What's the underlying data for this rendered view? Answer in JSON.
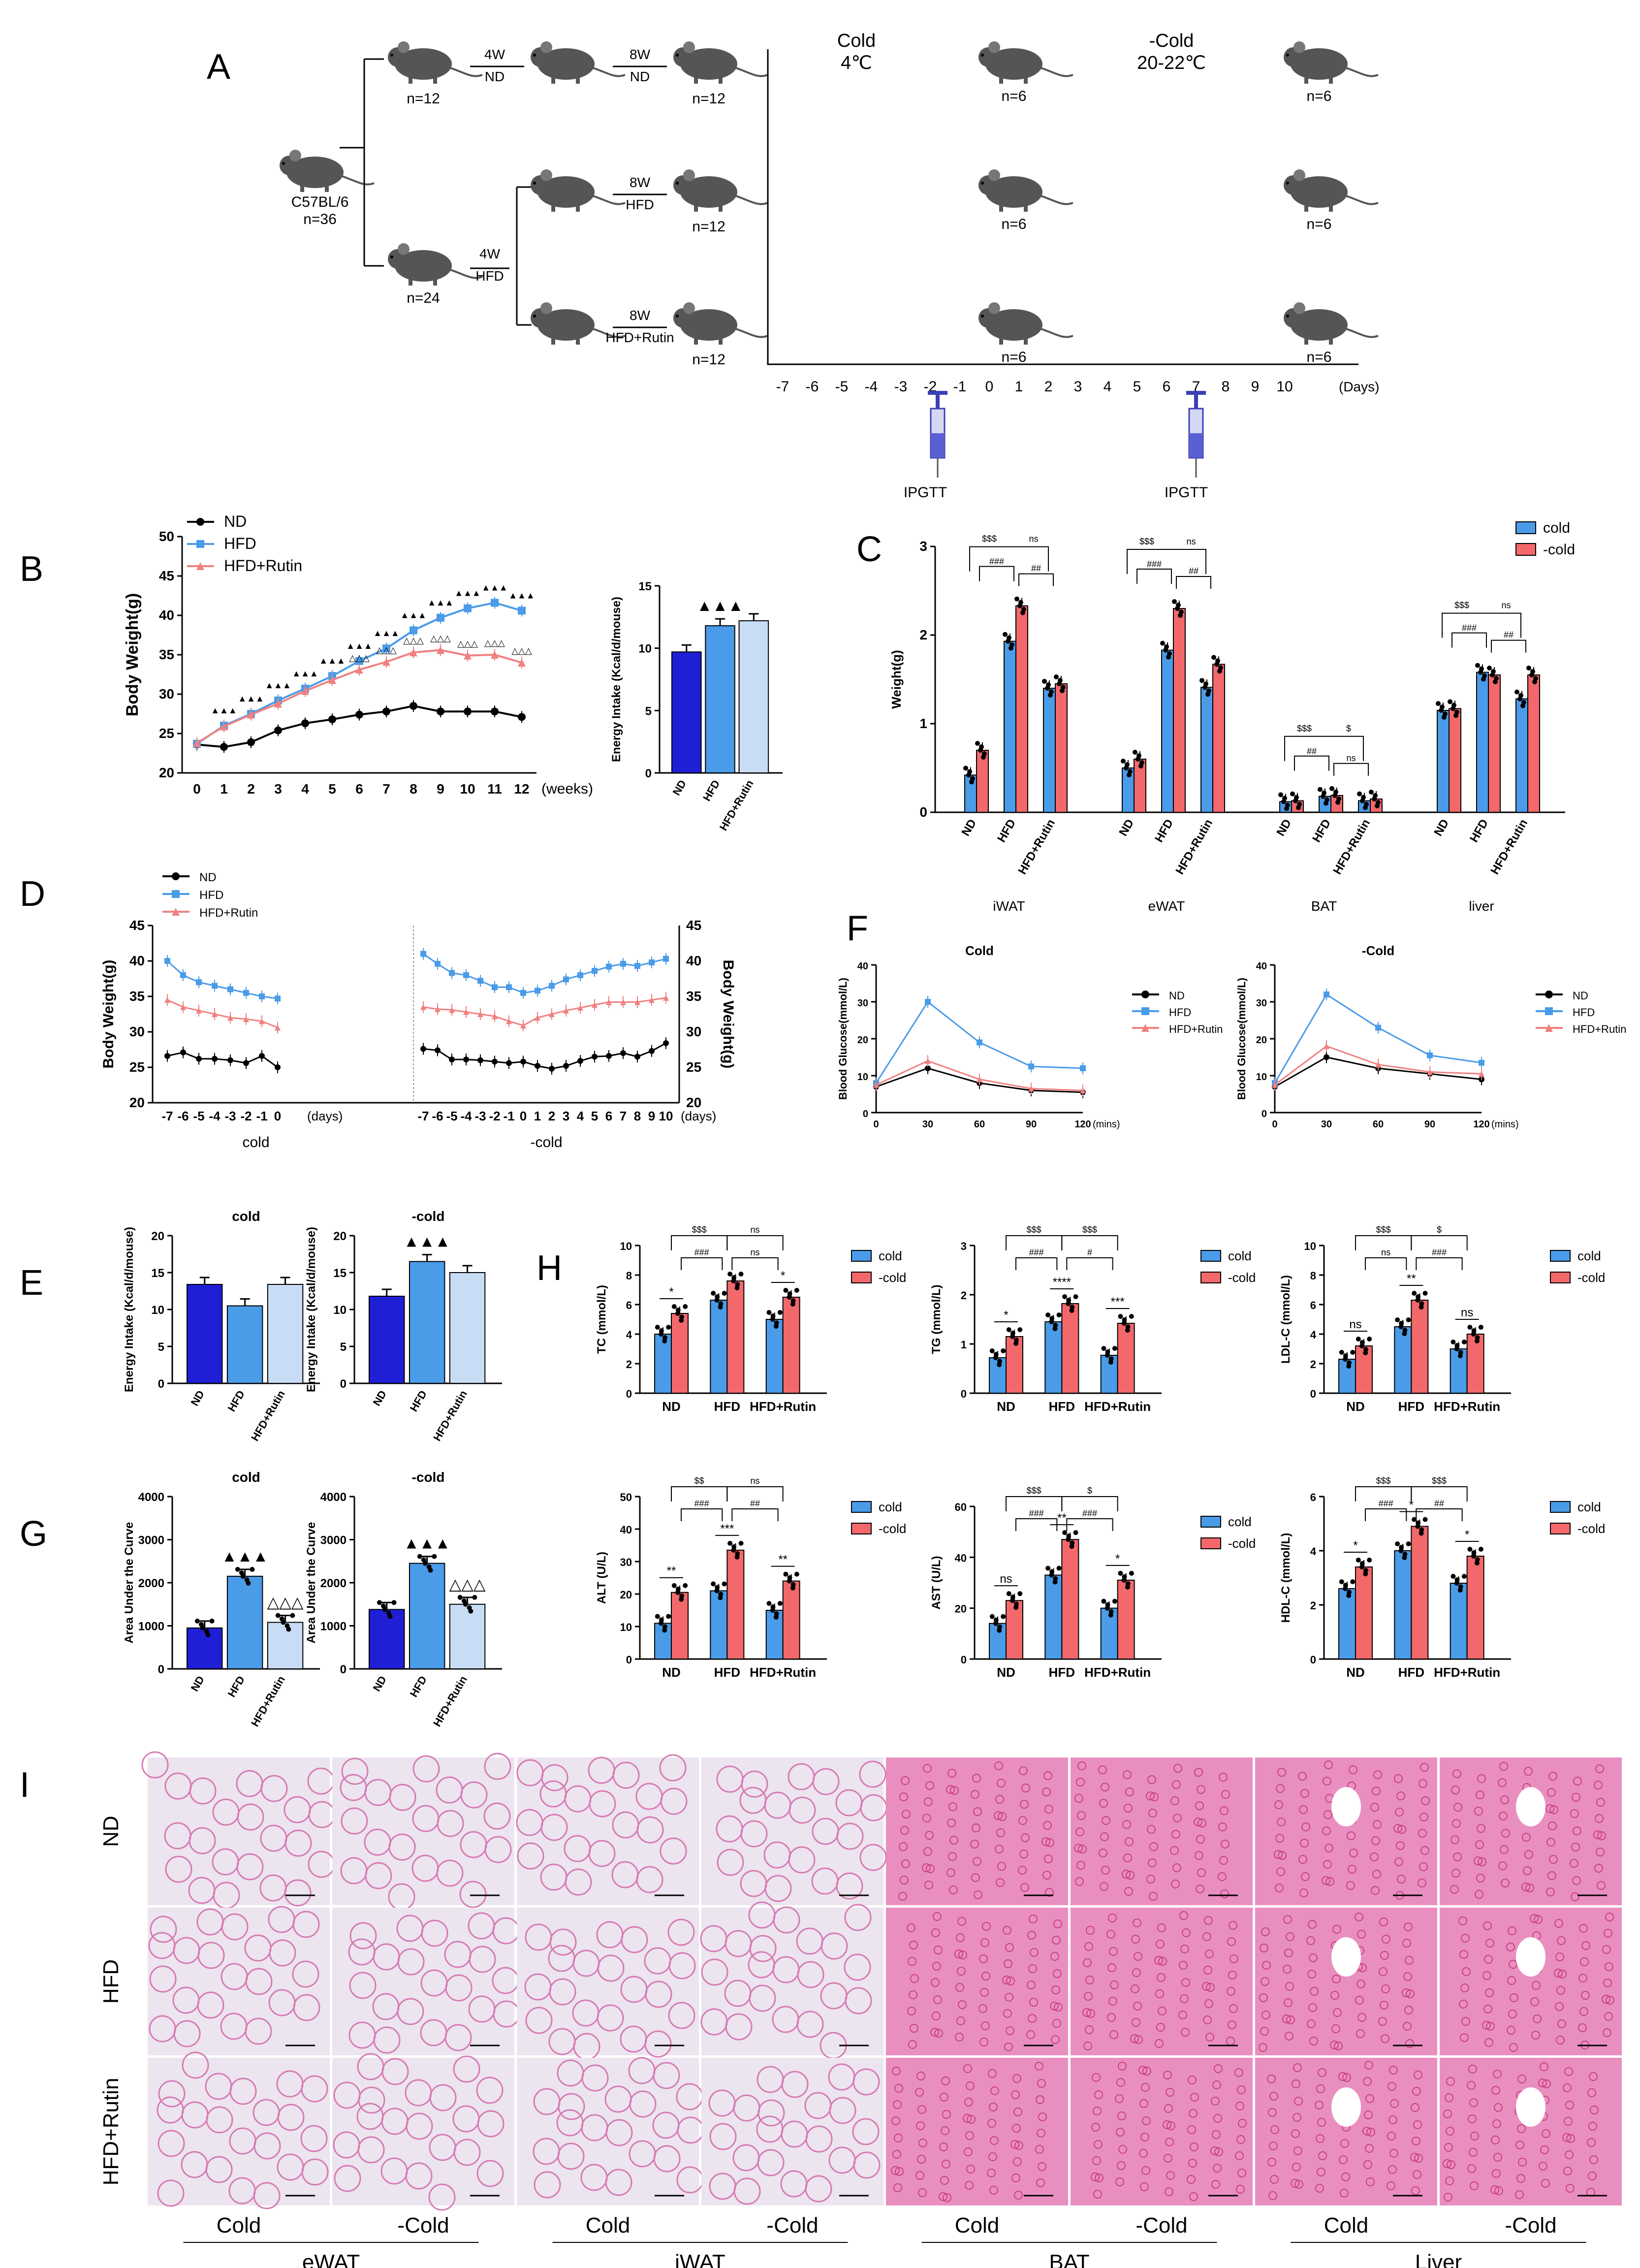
{
  "colors": {
    "nd": "#1f1fd6",
    "hfd": "#4a9be8",
    "rutin": "#c9dcf5",
    "cold": "#4a9be8",
    "warm": "#f2686b",
    "he_pink": "#e05a97",
    "he_bg": "#f3e8f1"
  },
  "panelA": {
    "letter": "A",
    "root": {
      "title": "C57BL/6",
      "n": "n=36"
    },
    "top": {
      "n1": "n=12",
      "arrow1_top": "4W",
      "arrow1_bot": "ND",
      "arrow2_top": "8W",
      "arrow2_bot": "ND",
      "n2": "n=12"
    },
    "bottom": {
      "n1": "n=24",
      "arrow_top": "4W",
      "arrow_bot": "HFD"
    },
    "hfd": {
      "arrow_top": "8W",
      "arrow_bot": "HFD",
      "n": "n=12"
    },
    "rutin": {
      "arrow_top": "8W",
      "arrow_bot": "HFD+Rutin",
      "n": "n=12"
    },
    "cold_title": "Cold",
    "cold_temp": "4℃",
    "warm_title": "-Cold",
    "warm_temp": "20-22℃",
    "n6": "n=6",
    "days": [
      "-7",
      "-6",
      "-5",
      "-4",
      "-3",
      "-2",
      "-1",
      "0",
      "1",
      "2",
      "3",
      "4",
      "5",
      "6",
      "7",
      "8",
      "9",
      "10"
    ],
    "days_unit": "(Days)",
    "ipgtt": "IPGTT"
  },
  "panelB": {
    "letter": "B",
    "ylabel": "Body Weight(g)",
    "xunit": "(weeks)"
  },
  "panelC": {
    "letter": "C",
    "ylabel": "Weight(g)"
  },
  "panelD": {
    "letter": "D",
    "ylabel_left": "Body Weight(g)",
    "ylabel_right": "Body Weight(g)",
    "days_label": "(days)",
    "cold": "cold",
    "warm": "-cold"
  },
  "panelE": {
    "letter": "E"
  },
  "panelF": {
    "letter": "F",
    "xunit": "(mins)"
  },
  "panelG": {
    "letter": "G"
  },
  "panelH": {
    "letter": "H",
    "legend_cold": "cold",
    "legend_warm": "-cold"
  },
  "panelI": {
    "letter": "I",
    "rows": [
      "ND",
      "HFD",
      "HFD+Rutin"
    ],
    "cols": [
      "Cold",
      "-Cold",
      "Cold",
      "-Cold",
      "Cold",
      "-Cold",
      "Cold",
      "-Cold"
    ],
    "tissues": [
      "eWAT",
      "iWAT",
      "BAT",
      "Liver"
    ]
  },
  "chart_data": [
    {
      "id": "B-body-weight",
      "type": "line",
      "title": "",
      "xlabel": "(weeks)",
      "ylabel": "Body Weight(g)",
      "ylim": [
        20,
        50
      ],
      "x": [
        0,
        1,
        2,
        3,
        4,
        5,
        6,
        7,
        8,
        9,
        10,
        11,
        12
      ],
      "series": [
        {
          "name": "ND",
          "values": [
            23.6,
            23.3,
            23.9,
            25.4,
            26.3,
            26.8,
            27.4,
            27.8,
            28.5,
            27.8,
            27.8,
            27.8,
            27.1
          ]
        },
        {
          "name": "HFD",
          "values": [
            23.7,
            26,
            27.5,
            29.2,
            30.7,
            32.3,
            34.2,
            35.8,
            38.1,
            39.7,
            40.9,
            41.6,
            40.6
          ]
        },
        {
          "name": "HFD+Rutin",
          "values": [
            23.8,
            25.9,
            27.4,
            28.8,
            30.4,
            31.8,
            33.1,
            34.1,
            35.3,
            35.6,
            34.9,
            35,
            34
          ]
        }
      ]
    },
    {
      "id": "B-energy",
      "type": "bar",
      "ylabel": "Energy Intake (Kcal/d/mouse)",
      "ylim": [
        0,
        15
      ],
      "categories": [
        "ND",
        "HFD",
        "HFD+Rutin"
      ],
      "values": [
        9.7,
        11.8,
        12.2
      ],
      "annotations": [
        "",
        "▲▲▲",
        ""
      ]
    },
    {
      "id": "C-tissue-weight",
      "type": "bar",
      "ylabel": "Weight(g)",
      "ylim": [
        0,
        3
      ],
      "categories": [
        "ND",
        "HFD",
        "HFD+Rutin"
      ],
      "groups": [
        "iWAT",
        "eWAT",
        "BAT",
        "liver"
      ],
      "series": [
        {
          "name": "cold",
          "values": [
            [
              0.42,
              1.93,
              1.4
            ],
            [
              0.5,
              1.83,
              1.41
            ],
            [
              0.12,
              0.18,
              0.13
            ],
            [
              1.15,
              1.58,
              1.28
            ]
          ]
        },
        {
          "name": "-cold",
          "values": [
            [
              0.7,
              2.33,
              1.45
            ],
            [
              0.6,
              2.3,
              1.67
            ],
            [
              0.13,
              0.19,
              0.15
            ],
            [
              1.17,
              1.55,
              1.55
            ]
          ]
        }
      ],
      "legend": [
        "cold",
        "-cold"
      ],
      "sig": {
        "iWAT": [
          "$$$",
          "ns",
          "###",
          "##"
        ],
        "eWAT": [
          "$$$",
          "ns",
          "###",
          "##"
        ],
        "BAT": [
          "$$$",
          "$",
          "##",
          "ns"
        ],
        "liver": [
          "$$$",
          "ns",
          "###",
          "##"
        ]
      }
    },
    {
      "id": "D-cold",
      "type": "line",
      "xlabel": "(days)",
      "ylabel": "Body Weight(g)",
      "ylim": [
        20,
        45
      ],
      "x": [
        "-7",
        "-6",
        "-5",
        "-4",
        "-3",
        "-2",
        "-1",
        "0"
      ],
      "series": [
        {
          "name": "ND",
          "values": [
            26.6,
            27.1,
            26.2,
            26.2,
            26,
            25.6,
            26.6,
            25
          ]
        },
        {
          "name": "HFD",
          "values": [
            40,
            38,
            37,
            36.5,
            36,
            35.5,
            35,
            34.7
          ]
        },
        {
          "name": "HFD+Rutin",
          "values": [
            34.5,
            33.5,
            33,
            32.5,
            32,
            31.8,
            31.5,
            30.6
          ]
        }
      ],
      "label": "cold"
    },
    {
      "id": "D-warm",
      "type": "line",
      "xlabel": "(days)",
      "ylabel": "Body Weight(g)",
      "ylim": [
        20,
        45
      ],
      "x": [
        "-7",
        "-6",
        "-5",
        "-4",
        "-3",
        "-2",
        "-1",
        "0",
        "1",
        "2",
        "3",
        "4",
        "5",
        "6",
        "7",
        "8",
        "9",
        "10"
      ],
      "series": [
        {
          "name": "ND",
          "values": [
            27.6,
            27.4,
            26.1,
            26.1,
            26,
            25.8,
            25.6,
            25.8,
            25.2,
            24.8,
            25.2,
            25.9,
            26.5,
            26.6,
            27,
            26.5,
            27.3,
            28.4
          ]
        },
        {
          "name": "HFD",
          "values": [
            41,
            39.6,
            38.3,
            38,
            37.2,
            36.3,
            36.3,
            35.5,
            35.8,
            36.5,
            37.4,
            38,
            38.6,
            39.2,
            39.6,
            39.3,
            39.8,
            40.3
          ]
        },
        {
          "name": "HFD+Rutin",
          "values": [
            33.5,
            33.2,
            33.1,
            32.8,
            32.5,
            32.2,
            31.5,
            30.9,
            32,
            32.5,
            33,
            33.4,
            33.8,
            34.2,
            34.2,
            34.2,
            34.5,
            34.8
          ]
        }
      ],
      "label": "-cold"
    },
    {
      "id": "E-cold",
      "type": "bar",
      "title": "cold",
      "ylabel": "Energy Intake (Kcal/d/mouse)",
      "ylim": [
        0,
        20
      ],
      "categories": [
        "ND",
        "HFD",
        "HFD+Rutin"
      ],
      "values": [
        13.4,
        10.5,
        13.4
      ]
    },
    {
      "id": "E-warm",
      "type": "bar",
      "title": "-cold",
      "ylabel": "Energy Intake (Kcal/d/mouse)",
      "ylim": [
        0,
        20
      ],
      "categories": [
        "ND",
        "HFD",
        "HFD+Rutin"
      ],
      "values": [
        11.8,
        16.5,
        15
      ],
      "annotations": [
        "",
        "▲▲▲",
        ""
      ]
    },
    {
      "id": "F-cold",
      "type": "line",
      "title": "Cold",
      "xlabel": "(mins)",
      "ylabel": "Blood Glucose(mmol/L)",
      "ylim": [
        0,
        40
      ],
      "x": [
        0,
        30,
        60,
        90,
        120
      ],
      "series": [
        {
          "name": "ND",
          "values": [
            7,
            12,
            8,
            6,
            5.5
          ]
        },
        {
          "name": "HFD",
          "values": [
            8,
            30,
            19,
            12.5,
            12
          ]
        },
        {
          "name": "HFD+Rutin",
          "values": [
            7.5,
            14,
            9,
            6.5,
            6
          ]
        }
      ]
    },
    {
      "id": "F-warm",
      "type": "line",
      "title": "-Cold",
      "xlabel": "(mins)",
      "ylabel": "Blood Glucose(mmol/L)",
      "ylim": [
        0,
        40
      ],
      "x": [
        0,
        30,
        60,
        90,
        120
      ],
      "series": [
        {
          "name": "ND",
          "values": [
            7,
            15,
            12,
            10.5,
            9
          ]
        },
        {
          "name": "HFD",
          "values": [
            8,
            32,
            23,
            15.5,
            13.5
          ]
        },
        {
          "name": "HFD+Rutin",
          "values": [
            7.5,
            18,
            13,
            11,
            10.5
          ]
        }
      ]
    },
    {
      "id": "G-cold",
      "type": "bar",
      "title": "cold",
      "ylabel": "Area Under the Curve",
      "ylim": [
        0,
        4000
      ],
      "categories": [
        "ND",
        "HFD",
        "HFD+Rutin"
      ],
      "values": [
        950,
        2150,
        1080
      ],
      "annotations": [
        "",
        "▲▲▲",
        "△△△"
      ]
    },
    {
      "id": "G-warm",
      "type": "bar",
      "title": "-cold",
      "ylabel": "Area Under the Curve",
      "ylim": [
        0,
        4000
      ],
      "categories": [
        "ND",
        "HFD",
        "HFD+Rutin"
      ],
      "values": [
        1380,
        2450,
        1500
      ],
      "annotations": [
        "",
        "▲▲▲",
        "△△△"
      ]
    },
    {
      "id": "H-TC",
      "type": "bar",
      "ylabel": "TC (mmol/L)",
      "ylim": [
        0,
        10
      ],
      "categories": [
        "ND",
        "HFD",
        "HFD+Rutin"
      ],
      "series": [
        {
          "name": "cold",
          "values": [
            4,
            6.3,
            5
          ]
        },
        {
          "name": "-cold",
          "values": [
            5.4,
            7.6,
            6.5
          ]
        }
      ],
      "sig_pairs": [
        "*",
        "",
        "*"
      ],
      "brackets": [
        "$$$",
        "ns",
        "###",
        "ns"
      ]
    },
    {
      "id": "H-TG",
      "type": "bar",
      "ylabel": "TG (mmol/L)",
      "ylim": [
        0,
        3
      ],
      "categories": [
        "ND",
        "HFD",
        "HFD+Rutin"
      ],
      "series": [
        {
          "name": "cold",
          "values": [
            0.72,
            1.45,
            0.77
          ]
        },
        {
          "name": "-cold",
          "values": [
            1.15,
            1.82,
            1.42
          ]
        }
      ],
      "sig_pairs": [
        "*",
        "****",
        "***"
      ],
      "brackets": [
        "$$$",
        "$$$",
        "###",
        "#"
      ]
    },
    {
      "id": "H-LDL",
      "type": "bar",
      "ylabel": "LDL-C (mmol/L)",
      "ylim": [
        0,
        10
      ],
      "categories": [
        "ND",
        "HFD",
        "HFD+Rutin"
      ],
      "series": [
        {
          "name": "cold",
          "values": [
            2.3,
            4.5,
            3
          ]
        },
        {
          "name": "-cold",
          "values": [
            3.2,
            6.3,
            4
          ]
        }
      ],
      "sig_pairs": [
        "ns",
        "**",
        "ns"
      ],
      "brackets": [
        "$$$",
        "$",
        "ns",
        "###"
      ]
    },
    {
      "id": "H-ALT",
      "type": "bar",
      "ylabel": "ALT (U/L)",
      "ylim": [
        0,
        50
      ],
      "categories": [
        "ND",
        "HFD",
        "HFD+Rutin"
      ],
      "series": [
        {
          "name": "cold",
          "values": [
            11,
            21,
            15
          ]
        },
        {
          "name": "-cold",
          "values": [
            20.5,
            33.5,
            24
          ]
        }
      ],
      "sig_pairs": [
        "**",
        "***",
        "**"
      ],
      "brackets": [
        "$$",
        "ns",
        "###",
        "##"
      ]
    },
    {
      "id": "H-AST",
      "type": "bar",
      "ylabel": "AST (U/L)",
      "ylim": [
        0,
        60
      ],
      "categories": [
        "ND",
        "HFD",
        "HFD+Rutin"
      ],
      "series": [
        {
          "name": "cold",
          "values": [
            14,
            33,
            20
          ]
        },
        {
          "name": "-cold",
          "values": [
            23,
            47,
            31
          ]
        }
      ],
      "sig_pairs": [
        "ns",
        "**",
        "*"
      ],
      "brackets": [
        "$$$",
        "$",
        "###",
        "###"
      ]
    },
    {
      "id": "H-HDL",
      "type": "bar",
      "ylabel": "HDL-C (mmol/L)",
      "ylim": [
        0,
        6
      ],
      "categories": [
        "ND",
        "HFD",
        "HFD+Rutin"
      ],
      "series": [
        {
          "name": "cold",
          "values": [
            2.6,
            4,
            2.8
          ]
        },
        {
          "name": "-cold",
          "values": [
            3.4,
            4.9,
            3.8
          ]
        }
      ],
      "sig_pairs": [
        "*",
        "*",
        "*"
      ],
      "brackets": [
        "$$$",
        "$$$",
        "###",
        "##"
      ]
    }
  ]
}
